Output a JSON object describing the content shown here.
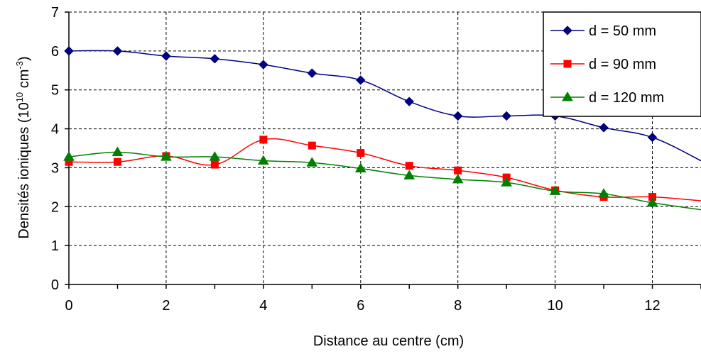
{
  "chart_data": {
    "type": "line",
    "title": "",
    "xlabel": "Distance au centre (cm)",
    "ylabel": "Densités ioniques (10",
    "ylabel_exp": "10",
    "ylabel_unit": " cm",
    "ylabel_unit_exp": "-3",
    "ylabel_close": ")",
    "xlim": [
      0,
      13
    ],
    "ylim": [
      0,
      7
    ],
    "xticks": [
      "0",
      "2",
      "4",
      "6",
      "8",
      "10",
      "12"
    ],
    "yticks": [
      "0",
      "1",
      "2",
      "3",
      "4",
      "5",
      "6",
      "7"
    ],
    "grid": true,
    "legend_position": "top-right",
    "series": [
      {
        "name": "d = 50 mm",
        "color": "#000080",
        "marker": "diamond",
        "x": [
          0,
          1,
          2,
          3,
          4,
          5,
          6,
          7,
          8,
          9,
          10,
          11,
          12,
          13
        ],
        "y": [
          6.0,
          6.0,
          5.87,
          5.8,
          5.65,
          5.43,
          5.25,
          4.7,
          4.33,
          4.33,
          4.33,
          4.03,
          3.78,
          3.18
        ]
      },
      {
        "name": "d = 90 mm",
        "color": "#ff0000",
        "marker": "square",
        "x": [
          0,
          1,
          2,
          3,
          4,
          5,
          6,
          7,
          8,
          9,
          10,
          11,
          12,
          13
        ],
        "y": [
          3.15,
          3.15,
          3.3,
          3.08,
          3.72,
          3.57,
          3.38,
          3.05,
          2.93,
          2.75,
          2.42,
          2.25,
          2.25,
          2.15
        ]
      },
      {
        "name": "d = 120 mm",
        "color": "#008000",
        "marker": "triangle",
        "x": [
          0,
          1,
          2,
          3,
          4,
          5,
          6,
          7,
          8,
          9,
          10,
          11,
          12,
          13
        ],
        "y": [
          3.28,
          3.4,
          3.28,
          3.28,
          3.18,
          3.13,
          2.98,
          2.8,
          2.7,
          2.62,
          2.4,
          2.33,
          2.1,
          1.92
        ]
      }
    ]
  }
}
